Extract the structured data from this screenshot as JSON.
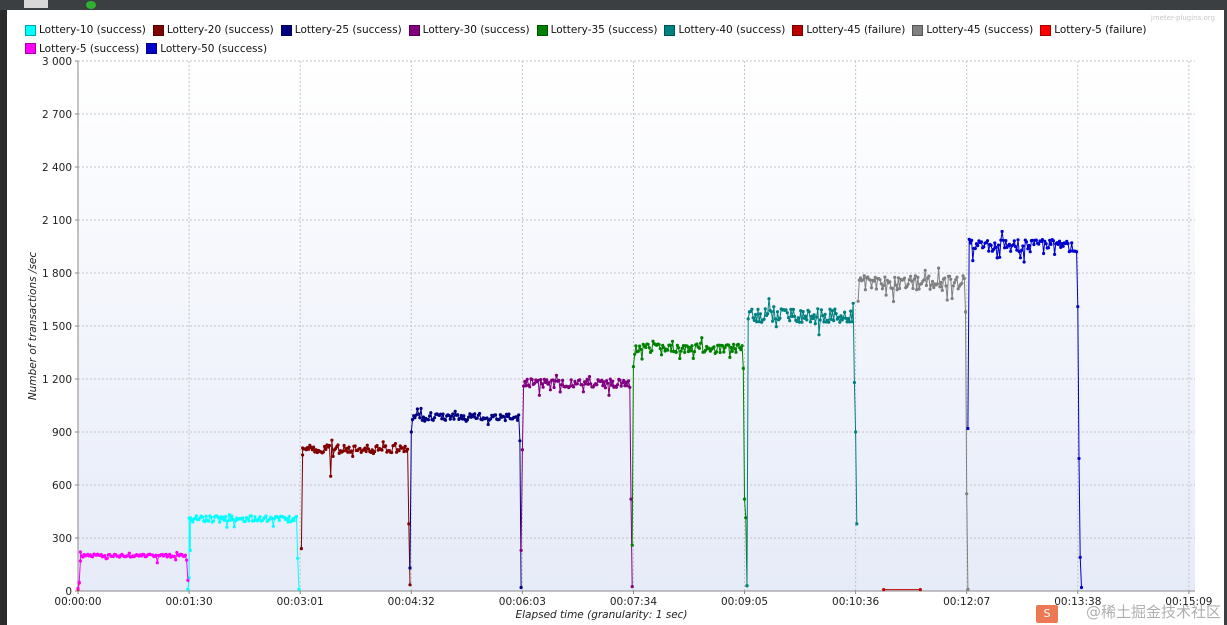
{
  "watermark_top": "jmeter-plugins.org",
  "watermark_bottom": "@稀土掘金技术社区",
  "logo_badge": "S",
  "chart_data": {
    "type": "line",
    "title": "",
    "xlabel": "Elapsed time (granularity: 1 sec)",
    "ylabel": "Number of transactions /sec",
    "xlim": [
      0,
      915
    ],
    "ylim": [
      0,
      3000
    ],
    "x_ticks": [
      0,
      91,
      182,
      273,
      364,
      455,
      546,
      637,
      728,
      819,
      910
    ],
    "x_tick_labels": [
      "00:00:00",
      "00:01:30",
      "00:03:01",
      "00:04:32",
      "00:06:03",
      "00:07:34",
      "00:09:05",
      "00:10:36",
      "00:12:07",
      "00:13:38",
      "00:15:09"
    ],
    "y_ticks": [
      0,
      300,
      600,
      900,
      1200,
      1500,
      1800,
      2100,
      2400,
      2700,
      3000
    ],
    "y_tick_labels": [
      "0",
      "300",
      "600",
      "900",
      "1 200",
      "1 500",
      "1 800",
      "2 100",
      "2 400",
      "2 700",
      "3 000"
    ],
    "grid": true,
    "legend_position": "top",
    "series": [
      {
        "name": "Lottery-10 (success)",
        "color": "#00ffff",
        "start": 91,
        "end": 180,
        "plateau": 408,
        "noise": 18,
        "ramp_up": [
          [
            90,
            10
          ],
          [
            91,
            75
          ],
          [
            92,
            230
          ]
        ],
        "ramp_down": [
          [
            180,
            185
          ],
          [
            181,
            10
          ]
        ]
      },
      {
        "name": "Lottery-20 (success)",
        "color": "#800000",
        "start": 184,
        "end": 271,
        "plateau": 802,
        "noise": 25,
        "ramp_up": [
          [
            183,
            240
          ],
          [
            184,
            770
          ]
        ],
        "ramp_down": [
          [
            271,
            380
          ],
          [
            272,
            35
          ]
        ],
        "dips": [
          [
            207,
            650
          ]
        ]
      },
      {
        "name": "Lottery-25 (success)",
        "color": "#000080",
        "start": 275,
        "end": 362,
        "plateau": 985,
        "noise": 20,
        "ramp_up": [
          [
            272,
            130
          ],
          [
            273,
            900
          ],
          [
            274,
            970
          ]
        ],
        "ramp_down": [
          [
            362,
            850
          ],
          [
            363,
            20
          ]
        ]
      },
      {
        "name": "Lottery-30 (success)",
        "color": "#800080",
        "start": 366,
        "end": 453,
        "plateau": 1175,
        "noise": 25,
        "ramp_up": [
          [
            363,
            230
          ],
          [
            364,
            800
          ],
          [
            365,
            1160
          ]
        ],
        "ramp_down": [
          [
            453,
            520
          ],
          [
            454,
            25
          ]
        ]
      },
      {
        "name": "Lottery-35 (success)",
        "color": "#008000",
        "start": 457,
        "end": 545,
        "plateau": 1375,
        "noise": 25,
        "ramp_up": [
          [
            454,
            260
          ],
          [
            455,
            1270
          ],
          [
            456,
            1340
          ]
        ],
        "ramp_down": [
          [
            545,
            1260
          ],
          [
            546,
            520
          ],
          [
            547,
            415
          ],
          [
            548,
            30
          ]
        ]
      },
      {
        "name": "Lottery-40 (success)",
        "color": "#008080",
        "start": 551,
        "end": 636,
        "plateau": 1560,
        "noise": 40,
        "ramp_up": [
          [
            548,
            30
          ],
          [
            549,
            1540
          ],
          [
            550,
            1580
          ]
        ],
        "ramp_down": [
          [
            636,
            1180
          ],
          [
            637,
            900
          ],
          [
            638,
            380
          ]
        ]
      },
      {
        "name": "Lottery-45 (failure)",
        "color": "#bb0000",
        "start": 660,
        "end": 690,
        "plateau": 0,
        "noise": 0,
        "flat": [
          [
            660,
            8
          ],
          [
            690,
            8
          ]
        ]
      },
      {
        "name": "Lottery-45 (success)",
        "color": "#808080",
        "start": 641,
        "end": 727,
        "plateau": 1745,
        "noise": 40,
        "ramp_up": [
          [
            639,
            1640
          ],
          [
            640,
            1760
          ]
        ],
        "ramp_down": [
          [
            727,
            1580
          ],
          [
            728,
            550
          ],
          [
            729,
            10
          ]
        ]
      },
      {
        "name": "Lottery-5 (failure)",
        "color": "#ff0000",
        "start": 0,
        "end": 1,
        "plateau": 0,
        "noise": 0,
        "flat": [
          [
            0,
            10
          ],
          [
            1,
            45
          ]
        ]
      },
      {
        "name": "Lottery-5 (success)",
        "color": "#ff00ff",
        "start": 2,
        "end": 89,
        "plateau": 200,
        "noise": 9,
        "ramp_up": [
          [
            0,
            15
          ],
          [
            1,
            50
          ],
          [
            2,
            170
          ]
        ],
        "ramp_down": [
          [
            89,
            175
          ],
          [
            90,
            60
          ]
        ],
        "dips": [
          [
            65,
            160
          ]
        ]
      },
      {
        "name": "Lottery-50 (success)",
        "color": "#0000cc",
        "start": 732,
        "end": 818,
        "plateau": 1955,
        "noise": 35,
        "ramp_up": [
          [
            729,
            920
          ],
          [
            730,
            1990
          ],
          [
            731,
            1970
          ]
        ],
        "ramp_down": [
          [
            818,
            1920
          ],
          [
            819,
            1610
          ],
          [
            820,
            750
          ],
          [
            821,
            190
          ],
          [
            822,
            20
          ]
        ]
      }
    ]
  }
}
